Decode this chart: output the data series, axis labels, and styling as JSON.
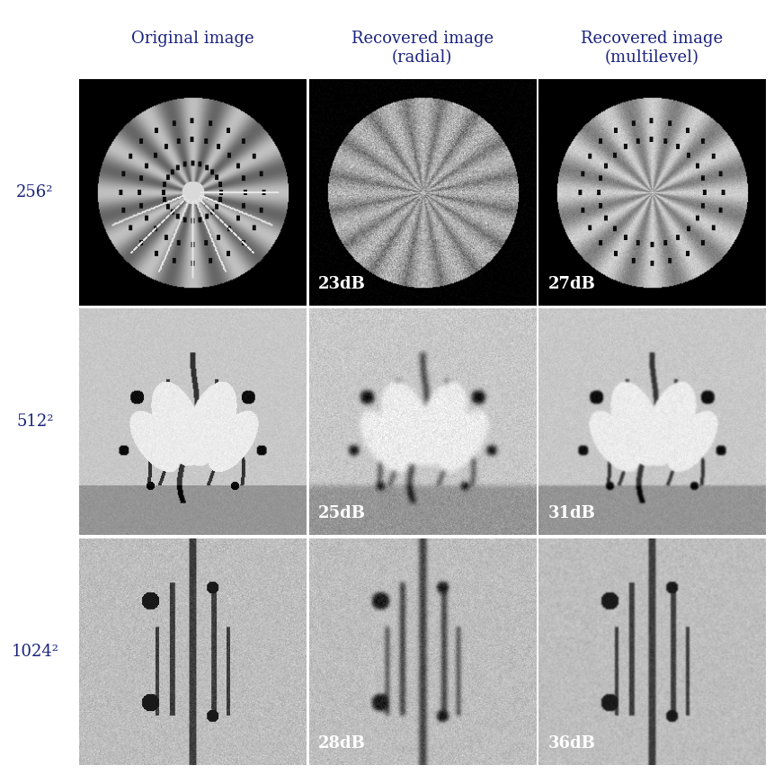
{
  "title": "",
  "col_titles": [
    "Original image",
    "Recovered image\n(radial)",
    "Recovered image\n(multilevel)"
  ],
  "row_labels": [
    "256²",
    "512²",
    "1024²"
  ],
  "db_labels": [
    [
      "",
      "23dB",
      "27dB"
    ],
    [
      "",
      "25dB",
      "31dB"
    ],
    [
      "",
      "28dB",
      "36dB"
    ]
  ],
  "col_title_color": "#1a237e",
  "row_label_color": "#1a237e",
  "db_label_color": "#ffffff",
  "background_color": "#ffffff",
  "fig_width": 8.62,
  "fig_height": 8.61,
  "title_fontsize": 13,
  "row_label_fontsize": 13,
  "db_fontsize": 13
}
